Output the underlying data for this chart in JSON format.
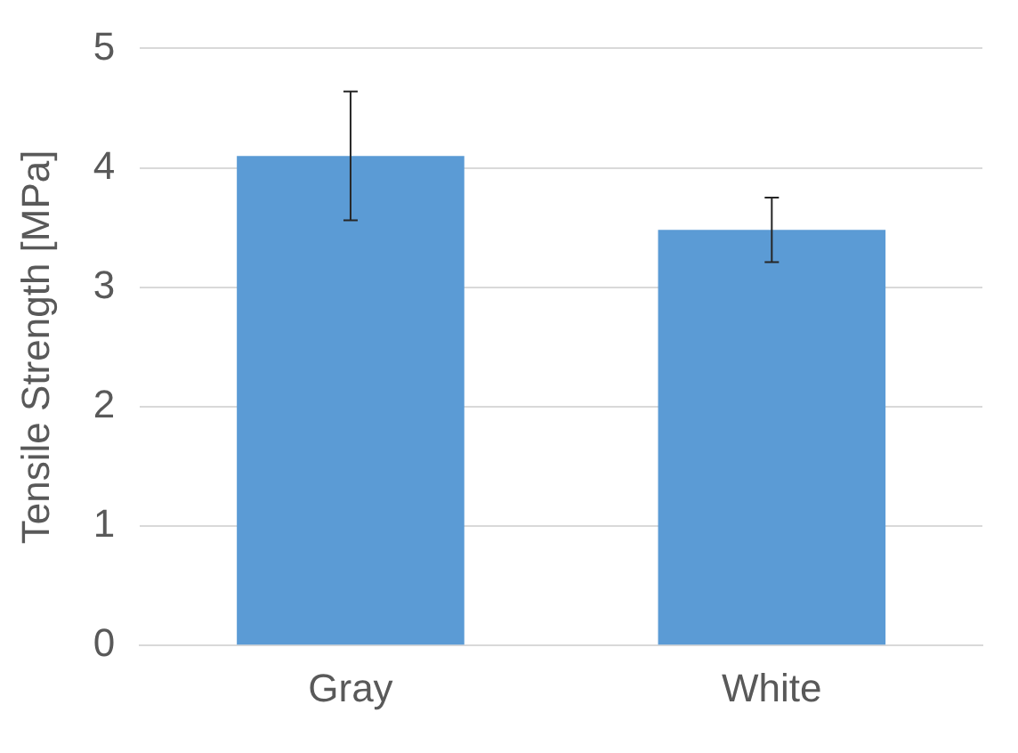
{
  "chart_data": {
    "type": "bar",
    "ylabel": "Tensile Strength [MPa]",
    "categories": [
      "Gray",
      "White"
    ],
    "values": [
      4.1,
      3.48
    ],
    "errors": [
      0.54,
      0.27
    ],
    "colors": [
      "#5b9bd5",
      "#5b9bd5"
    ],
    "ylim": [
      0,
      5
    ],
    "yticks": [
      0,
      1,
      2,
      3,
      4,
      5
    ],
    "grid": "y",
    "legend": false
  }
}
